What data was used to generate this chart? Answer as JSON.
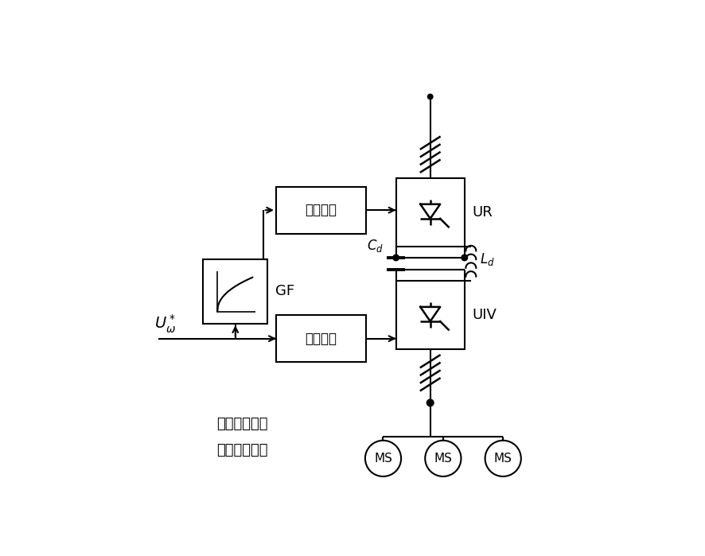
{
  "bg_color": "#ffffff",
  "line_color": "#000000",
  "fig_width": 8.87,
  "fig_height": 6.99,
  "dpi": 100,
  "labels": {
    "GF": "GF",
    "UR": "UR",
    "UIV": "UIV",
    "voltage_ctrl": "电压控制",
    "freq_ctrl": "频率控制",
    "motor_label": "MS",
    "bottom_text1": "永磁或磁阰式",
    "bottom_text2": "同步电动机群"
  },
  "colors": {
    "black": "#000000",
    "white": "#ffffff"
  }
}
